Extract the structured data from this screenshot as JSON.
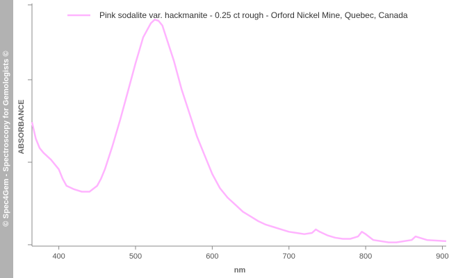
{
  "watermark": "© Spec4Gem - Spectroscopy for Gemologists ©",
  "colors": {
    "series": "#ffb3ff",
    "axis": "#888888",
    "sidebar": "#b2b2b2"
  },
  "chart_data": {
    "type": "line",
    "title": "",
    "xlabel": "nm",
    "ylabel": "ABSORBANCE",
    "xlim": [
      365,
      905
    ],
    "ylim": [
      0,
      1
    ],
    "x_ticks": [
      400,
      500,
      600,
      700,
      800,
      900
    ],
    "x_tick_labels": [
      "400",
      "500",
      "600",
      "700",
      "800",
      "900"
    ],
    "y_ticks": [
      0,
      0.35,
      0.7,
      1.0
    ],
    "grid": false,
    "legend_position": "top",
    "series": [
      {
        "name": "Pink sodalite var. hackmanite - 0.25 ct rough - Orford Nickel Mine, Quebec, Canada",
        "x": [
          365,
          370,
          375,
          380,
          390,
          400,
          405,
          410,
          420,
          430,
          440,
          450,
          455,
          460,
          470,
          480,
          490,
          500,
          510,
          520,
          525,
          530,
          535,
          540,
          550,
          560,
          570,
          580,
          590,
          600,
          610,
          620,
          630,
          640,
          650,
          660,
          670,
          680,
          690,
          700,
          710,
          720,
          730,
          735,
          740,
          750,
          760,
          770,
          780,
          790,
          795,
          800,
          810,
          820,
          830,
          840,
          850,
          860,
          865,
          870,
          880,
          890,
          905
        ],
        "y": [
          0.52,
          0.45,
          0.41,
          0.39,
          0.36,
          0.32,
          0.28,
          0.25,
          0.235,
          0.225,
          0.225,
          0.25,
          0.28,
          0.32,
          0.42,
          0.53,
          0.65,
          0.77,
          0.88,
          0.94,
          0.955,
          0.95,
          0.93,
          0.88,
          0.78,
          0.66,
          0.56,
          0.46,
          0.38,
          0.3,
          0.24,
          0.2,
          0.17,
          0.14,
          0.12,
          0.1,
          0.085,
          0.075,
          0.065,
          0.055,
          0.05,
          0.045,
          0.05,
          0.065,
          0.055,
          0.04,
          0.03,
          0.025,
          0.025,
          0.035,
          0.055,
          0.045,
          0.02,
          0.015,
          0.01,
          0.01,
          0.015,
          0.02,
          0.035,
          0.03,
          0.02,
          0.018,
          0.015
        ]
      }
    ]
  }
}
